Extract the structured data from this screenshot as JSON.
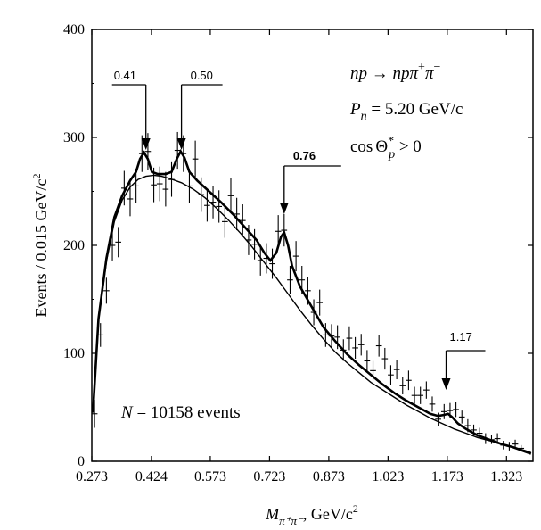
{
  "chart_data": {
    "type": "scatter",
    "xlabel": {
      "main": "M",
      "sub": "π⁺π⁻",
      "unit": ", GeV/c",
      "unit_sup": "2"
    },
    "ylabel": {
      "main": "Events / 0.015 GeV/c",
      "sup": "2"
    },
    "x_ticks": [
      0.273,
      0.424,
      0.573,
      0.723,
      0.873,
      1.023,
      1.173,
      1.323
    ],
    "x_tick_labels": [
      "0.273",
      "0.424",
      "0.573",
      "0.723",
      "0.873",
      "1.023",
      "1.173",
      "1.323"
    ],
    "y_ticks": [
      0,
      100,
      200,
      300,
      400
    ],
    "y_tick_labels": [
      "0",
      "100",
      "200",
      "300",
      "400"
    ],
    "xlim": [
      0.273,
      1.39
    ],
    "ylim": [
      0,
      400
    ],
    "grid": false,
    "annotations": {
      "reaction": {
        "a": "np",
        "arrow": " → ",
        "b": "npπ",
        "sup1": "+",
        "c": "π",
        "sup2": "−"
      },
      "momentum": {
        "sym": "P",
        "sub": "n",
        "rest": " = 5.20 GeV/c"
      },
      "angle": {
        "pre": "cos",
        "sym": "Θ",
        "sup": "*",
        "sub": "p",
        "rest": " > 0"
      },
      "events": {
        "sym": "N",
        "rest": " = 10158 events"
      }
    },
    "peaks": [
      {
        "label": "0.41",
        "mass": 0.41,
        "bold": false
      },
      {
        "label": "0.50",
        "mass": 0.5,
        "bold": false
      },
      {
        "label": "0.76",
        "mass": 0.76,
        "bold": true
      },
      {
        "label": "1.17",
        "mass": 1.17,
        "bold": false
      }
    ],
    "data_points": [
      {
        "x": 0.28,
        "y": 44,
        "e": 13
      },
      {
        "x": 0.295,
        "y": 117,
        "e": 11
      },
      {
        "x": 0.31,
        "y": 158,
        "e": 12
      },
      {
        "x": 0.325,
        "y": 200,
        "e": 14
      },
      {
        "x": 0.34,
        "y": 203,
        "e": 14
      },
      {
        "x": 0.355,
        "y": 253,
        "e": 16
      },
      {
        "x": 0.37,
        "y": 243,
        "e": 16
      },
      {
        "x": 0.385,
        "y": 255,
        "e": 16
      },
      {
        "x": 0.4,
        "y": 285,
        "e": 17
      },
      {
        "x": 0.415,
        "y": 287,
        "e": 17
      },
      {
        "x": 0.43,
        "y": 256,
        "e": 16
      },
      {
        "x": 0.445,
        "y": 257,
        "e": 16
      },
      {
        "x": 0.46,
        "y": 252,
        "e": 16
      },
      {
        "x": 0.475,
        "y": 261,
        "e": 16
      },
      {
        "x": 0.49,
        "y": 288,
        "e": 17
      },
      {
        "x": 0.505,
        "y": 285,
        "e": 17
      },
      {
        "x": 0.52,
        "y": 255,
        "e": 16
      },
      {
        "x": 0.535,
        "y": 280,
        "e": 17
      },
      {
        "x": 0.55,
        "y": 247,
        "e": 16
      },
      {
        "x": 0.565,
        "y": 237,
        "e": 15
      },
      {
        "x": 0.58,
        "y": 240,
        "e": 15
      },
      {
        "x": 0.595,
        "y": 236,
        "e": 15
      },
      {
        "x": 0.61,
        "y": 222,
        "e": 15
      },
      {
        "x": 0.625,
        "y": 246,
        "e": 16
      },
      {
        "x": 0.64,
        "y": 229,
        "e": 15
      },
      {
        "x": 0.655,
        "y": 223,
        "e": 15
      },
      {
        "x": 0.67,
        "y": 205,
        "e": 14
      },
      {
        "x": 0.685,
        "y": 201,
        "e": 14
      },
      {
        "x": 0.7,
        "y": 186,
        "e": 14
      },
      {
        "x": 0.715,
        "y": 188,
        "e": 14
      },
      {
        "x": 0.73,
        "y": 183,
        "e": 14
      },
      {
        "x": 0.745,
        "y": 213,
        "e": 15
      },
      {
        "x": 0.76,
        "y": 214,
        "e": 15
      },
      {
        "x": 0.775,
        "y": 168,
        "e": 13
      },
      {
        "x": 0.79,
        "y": 190,
        "e": 14
      },
      {
        "x": 0.805,
        "y": 168,
        "e": 13
      },
      {
        "x": 0.82,
        "y": 158,
        "e": 13
      },
      {
        "x": 0.835,
        "y": 138,
        "e": 12
      },
      {
        "x": 0.85,
        "y": 147,
        "e": 12
      },
      {
        "x": 0.865,
        "y": 117,
        "e": 11
      },
      {
        "x": 0.88,
        "y": 116,
        "e": 11
      },
      {
        "x": 0.895,
        "y": 115,
        "e": 11
      },
      {
        "x": 0.91,
        "y": 103,
        "e": 10
      },
      {
        "x": 0.925,
        "y": 114,
        "e": 11
      },
      {
        "x": 0.94,
        "y": 105,
        "e": 10
      },
      {
        "x": 0.955,
        "y": 108,
        "e": 10
      },
      {
        "x": 0.97,
        "y": 93,
        "e": 10
      },
      {
        "x": 0.985,
        "y": 84,
        "e": 9
      },
      {
        "x": 1.0,
        "y": 107,
        "e": 10
      },
      {
        "x": 1.015,
        "y": 95,
        "e": 10
      },
      {
        "x": 1.03,
        "y": 80,
        "e": 9
      },
      {
        "x": 1.045,
        "y": 85,
        "e": 9
      },
      {
        "x": 1.06,
        "y": 70,
        "e": 8
      },
      {
        "x": 1.075,
        "y": 75,
        "e": 9
      },
      {
        "x": 1.09,
        "y": 61,
        "e": 8
      },
      {
        "x": 1.105,
        "y": 61,
        "e": 8
      },
      {
        "x": 1.12,
        "y": 66,
        "e": 8
      },
      {
        "x": 1.135,
        "y": 53,
        "e": 7
      },
      {
        "x": 1.15,
        "y": 39,
        "e": 6
      },
      {
        "x": 1.165,
        "y": 46,
        "e": 7
      },
      {
        "x": 1.18,
        "y": 47,
        "e": 7
      },
      {
        "x": 1.195,
        "y": 48,
        "e": 7
      },
      {
        "x": 1.21,
        "y": 41,
        "e": 6
      },
      {
        "x": 1.225,
        "y": 33,
        "e": 6
      },
      {
        "x": 1.24,
        "y": 29,
        "e": 5
      },
      {
        "x": 1.255,
        "y": 26,
        "e": 5
      },
      {
        "x": 1.27,
        "y": 21,
        "e": 5
      },
      {
        "x": 1.285,
        "y": 20,
        "e": 4
      },
      {
        "x": 1.3,
        "y": 21,
        "e": 5
      },
      {
        "x": 1.315,
        "y": 15,
        "e": 4
      },
      {
        "x": 1.33,
        "y": 14,
        "e": 4
      },
      {
        "x": 1.345,
        "y": 16,
        "e": 4
      },
      {
        "x": 1.36,
        "y": 12,
        "e": 3
      }
    ],
    "background_curve": [
      [
        0.276,
        45
      ],
      [
        0.29,
        130
      ],
      [
        0.31,
        185
      ],
      [
        0.33,
        222
      ],
      [
        0.35,
        242
      ],
      [
        0.37,
        254
      ],
      [
        0.39,
        261
      ],
      [
        0.41,
        264
      ],
      [
        0.43,
        265
      ],
      [
        0.45,
        264
      ],
      [
        0.47,
        262
      ],
      [
        0.5,
        258
      ],
      [
        0.53,
        252
      ],
      [
        0.56,
        244
      ],
      [
        0.59,
        234
      ],
      [
        0.62,
        223
      ],
      [
        0.65,
        211
      ],
      [
        0.68,
        198
      ],
      [
        0.71,
        184
      ],
      [
        0.74,
        170
      ],
      [
        0.77,
        155
      ],
      [
        0.8,
        140
      ],
      [
        0.83,
        126
      ],
      [
        0.86,
        113
      ],
      [
        0.89,
        101
      ],
      [
        0.92,
        91
      ],
      [
        0.95,
        82
      ],
      [
        0.98,
        73
      ],
      [
        1.01,
        66
      ],
      [
        1.04,
        59
      ],
      [
        1.07,
        52
      ],
      [
        1.1,
        46
      ],
      [
        1.13,
        40
      ],
      [
        1.16,
        35
      ],
      [
        1.19,
        30
      ],
      [
        1.22,
        26
      ],
      [
        1.25,
        22
      ],
      [
        1.28,
        19
      ],
      [
        1.31,
        16
      ],
      [
        1.34,
        13
      ],
      [
        1.37,
        10
      ],
      [
        1.385,
        8
      ]
    ],
    "fit_curve": [
      [
        0.276,
        45
      ],
      [
        0.29,
        132
      ],
      [
        0.31,
        188
      ],
      [
        0.33,
        226
      ],
      [
        0.35,
        246
      ],
      [
        0.37,
        260
      ],
      [
        0.385,
        268
      ],
      [
        0.395,
        280
      ],
      [
        0.405,
        286
      ],
      [
        0.415,
        280
      ],
      [
        0.425,
        268
      ],
      [
        0.44,
        266
      ],
      [
        0.46,
        266
      ],
      [
        0.475,
        268
      ],
      [
        0.488,
        280
      ],
      [
        0.498,
        287
      ],
      [
        0.508,
        281
      ],
      [
        0.52,
        268
      ],
      [
        0.54,
        260
      ],
      [
        0.57,
        250
      ],
      [
        0.6,
        240
      ],
      [
        0.63,
        229
      ],
      [
        0.66,
        217
      ],
      [
        0.69,
        205
      ],
      [
        0.71,
        193
      ],
      [
        0.725,
        186
      ],
      [
        0.74,
        193
      ],
      [
        0.752,
        208
      ],
      [
        0.76,
        212
      ],
      [
        0.77,
        200
      ],
      [
        0.78,
        181
      ],
      [
        0.8,
        162
      ],
      [
        0.83,
        143
      ],
      [
        0.86,
        124
      ],
      [
        0.89,
        111
      ],
      [
        0.92,
        99
      ],
      [
        0.95,
        89
      ],
      [
        0.98,
        80
      ],
      [
        1.01,
        71
      ],
      [
        1.04,
        63
      ],
      [
        1.07,
        56
      ],
      [
        1.1,
        50
      ],
      [
        1.13,
        44
      ],
      [
        1.15,
        42
      ],
      [
        1.165,
        43
      ],
      [
        1.175,
        44
      ],
      [
        1.185,
        41
      ],
      [
        1.2,
        35
      ],
      [
        1.22,
        30
      ],
      [
        1.25,
        24
      ],
      [
        1.28,
        20
      ],
      [
        1.31,
        16
      ],
      [
        1.34,
        13
      ],
      [
        1.37,
        9
      ],
      [
        1.385,
        7
      ]
    ]
  }
}
